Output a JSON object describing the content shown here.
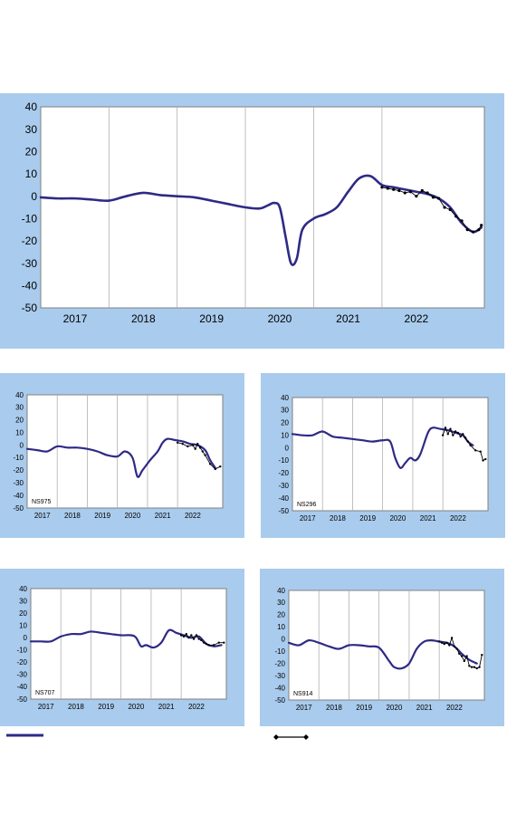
{
  "colors": {
    "panel_bg": "#a9cbed",
    "plot_bg": "#ffffff",
    "trend_line": "#2e2a85",
    "data_line": "#000000",
    "grid": "#b0b0b0"
  },
  "chart_data": [
    {
      "id": "main",
      "type": "line",
      "label": "",
      "x_axis": {
        "type": "date",
        "range": [
          "2016-07-01",
          "2022-12-31"
        ],
        "tick_labels": [
          "2017",
          "2018",
          "2019",
          "2020",
          "2021",
          "2022"
        ],
        "tick_positions": [
          "2017-01-01",
          "2018-01-01",
          "2019-01-01",
          "2020-01-01",
          "2021-01-01",
          "2022-01-01"
        ],
        "grid_lines": [
          "2017-07-01",
          "2018-07-01",
          "2019-07-01",
          "2020-07-01",
          "2021-07-01"
        ]
      },
      "y_axis": {
        "range": [
          -50,
          40
        ],
        "step": 10,
        "tick_labels": [
          "40",
          "30",
          "20",
          "10",
          "0",
          "-10",
          "-20",
          "-30",
          "-40",
          "-50"
        ]
      },
      "series": [
        {
          "name": "",
          "style": "smooth",
          "x": [
            "2016-07-01",
            "2016-10-01",
            "2017-01-01",
            "2017-04-01",
            "2017-07-01",
            "2017-10-01",
            "2018-01-01",
            "2018-04-01",
            "2018-07-01",
            "2018-10-01",
            "2019-01-01",
            "2019-04-01",
            "2019-07-01",
            "2019-09-15",
            "2019-11-01",
            "2019-12-01",
            "2020-01-01",
            "2020-02-01",
            "2020-03-01",
            "2020-04-01",
            "2020-05-01",
            "2020-07-01",
            "2020-09-01",
            "2020-11-01",
            "2021-01-01",
            "2021-03-01",
            "2021-05-01",
            "2021-07-01",
            "2021-09-01",
            "2021-11-01",
            "2022-01-01",
            "2022-03-01",
            "2022-05-01",
            "2022-07-01",
            "2022-09-01",
            "2022-11-01",
            "2022-12-15"
          ],
          "y": [
            -0.5,
            -1,
            -1,
            -1.5,
            -2,
            0,
            1.5,
            0.5,
            0,
            -0.5,
            -2,
            -3.5,
            -5,
            -5.5,
            -4,
            -3,
            -5,
            -18,
            -30,
            -28,
            -15,
            -10,
            -8,
            -5,
            2,
            8,
            9,
            5,
            4,
            3,
            2,
            1,
            -1,
            -5,
            -12,
            -16,
            -14
          ]
        },
        {
          "name": "",
          "style": "markers",
          "x": [
            "2021-07-01",
            "2021-08-01",
            "2021-09-01",
            "2021-10-01",
            "2021-11-01",
            "2021-12-01",
            "2022-01-01",
            "2022-02-01",
            "2022-03-01",
            "2022-04-01",
            "2022-05-01",
            "2022-06-01",
            "2022-07-01",
            "2022-08-01",
            "2022-09-01",
            "2022-10-01",
            "2022-11-01",
            "2022-12-01",
            "2022-12-15"
          ],
          "y": [
            4,
            3.5,
            3,
            2.5,
            1.5,
            2,
            0,
            2.5,
            1.5,
            -0.5,
            -1,
            -5,
            -6,
            -9,
            -11,
            -15,
            -16,
            -15,
            -13
          ]
        }
      ]
    },
    {
      "id": "ns975",
      "type": "line",
      "label": "NS975",
      "x_axis": {
        "type": "date",
        "range": [
          "2016-07-01",
          "2022-12-31"
        ],
        "tick_labels": [
          "2017",
          "2018",
          "2019",
          "2020",
          "2021",
          "2022"
        ],
        "tick_positions": [
          "2017-01-01",
          "2018-01-01",
          "2019-01-01",
          "2020-01-01",
          "2021-01-01",
          "2022-01-01"
        ],
        "grid_lines": [
          "2017-07-01",
          "2018-07-01",
          "2019-07-01",
          "2020-07-01",
          "2021-07-01"
        ]
      },
      "y_axis": {
        "range": [
          -50,
          40
        ],
        "step": 10,
        "tick_labels": [
          "40",
          "30",
          "20",
          "10",
          "0",
          "-10",
          "-20",
          "-30",
          "-40",
          "-50"
        ]
      },
      "series": [
        {
          "name": "",
          "style": "smooth",
          "x": [
            "2016-07-01",
            "2016-11-01",
            "2017-03-01",
            "2017-07-01",
            "2017-11-01",
            "2018-03-01",
            "2018-07-01",
            "2018-11-01",
            "2019-03-01",
            "2019-07-01",
            "2019-10-01",
            "2020-01-01",
            "2020-03-01",
            "2020-05-01",
            "2020-08-01",
            "2020-11-01",
            "2021-01-01",
            "2021-03-01",
            "2021-06-01",
            "2021-09-01",
            "2021-12-01",
            "2022-03-01",
            "2022-06-01",
            "2022-08-01",
            "2022-10-01"
          ],
          "y": [
            -3,
            -4,
            -5,
            -1,
            -2,
            -2,
            -3,
            -5,
            -8,
            -9,
            -5,
            -10,
            -25,
            -20,
            -12,
            -5,
            2,
            5,
            4,
            3,
            1,
            0,
            -4,
            -12,
            -18
          ]
        },
        {
          "name": "",
          "style": "markers",
          "x": [
            "2021-07-01",
            "2021-09-01",
            "2021-11-01",
            "2022-01-01",
            "2022-02-01",
            "2022-03-01",
            "2022-04-01",
            "2022-05-01",
            "2022-06-01",
            "2022-08-01",
            "2022-10-01",
            "2022-12-01"
          ],
          "y": [
            2,
            1,
            -1,
            0,
            -3,
            1,
            -2,
            -5,
            -8,
            -15,
            -19,
            -17
          ]
        }
      ]
    },
    {
      "id": "ns296",
      "type": "line",
      "label": "NS296",
      "x_axis": {
        "type": "date",
        "range": [
          "2016-07-01",
          "2022-12-31"
        ],
        "tick_labels": [
          "2017",
          "2018",
          "2019",
          "2020",
          "2021",
          "2022"
        ],
        "tick_positions": [
          "2017-01-01",
          "2018-01-01",
          "2019-01-01",
          "2020-01-01",
          "2021-01-01",
          "2022-01-01"
        ],
        "grid_lines": [
          "2017-07-01",
          "2018-07-01",
          "2019-07-01",
          "2020-07-01",
          "2021-07-01"
        ]
      },
      "y_axis": {
        "range": [
          -50,
          40
        ],
        "step": 10,
        "tick_labels": [
          "40",
          "30",
          "20",
          "10",
          "0",
          "-10",
          "-20",
          "-30",
          "-40",
          "-50"
        ]
      },
      "series": [
        {
          "name": "",
          "style": "smooth",
          "x": [
            "2016-07-01",
            "2016-11-01",
            "2017-03-01",
            "2017-07-01",
            "2017-11-01",
            "2018-03-01",
            "2018-07-01",
            "2018-11-01",
            "2019-03-01",
            "2019-07-01",
            "2019-10-01",
            "2019-12-01",
            "2020-02-01",
            "2020-04-01",
            "2020-06-01",
            "2020-08-01",
            "2020-10-01",
            "2021-01-01",
            "2021-03-01",
            "2021-06-01",
            "2021-09-01",
            "2021-12-01",
            "2022-03-01",
            "2022-05-01",
            "2022-07-01"
          ],
          "y": [
            11,
            10,
            10,
            13,
            9,
            8,
            7,
            6,
            5,
            6,
            5,
            -8,
            -16,
            -12,
            -8,
            -10,
            -5,
            12,
            16,
            15,
            14,
            12,
            10,
            5,
            2
          ]
        },
        {
          "name": "",
          "style": "markers",
          "x": [
            "2021-07-01",
            "2021-08-01",
            "2021-09-01",
            "2021-10-01",
            "2021-11-01",
            "2021-12-01",
            "2022-01-01",
            "2022-02-01",
            "2022-03-01",
            "2022-04-01",
            "2022-05-01",
            "2022-06-01",
            "2022-08-01",
            "2022-10-01",
            "2022-11-01",
            "2022-12-01"
          ],
          "y": [
            10,
            16,
            11,
            15,
            10,
            13,
            12,
            9,
            11,
            8,
            5,
            2,
            -2,
            -3,
            -10,
            -9
          ]
        }
      ]
    },
    {
      "id": "ns707",
      "type": "line",
      "label": "NS707",
      "x_axis": {
        "type": "date",
        "range": [
          "2016-07-01",
          "2022-12-31"
        ],
        "tick_labels": [
          "2017",
          "2018",
          "2019",
          "2020",
          "2021",
          "2022"
        ],
        "tick_positions": [
          "2017-01-01",
          "2018-01-01",
          "2019-01-01",
          "2020-01-01",
          "2021-01-01",
          "2022-01-01"
        ],
        "grid_lines": [
          "2017-07-01",
          "2018-07-01",
          "2019-07-01",
          "2020-07-01",
          "2021-07-01"
        ]
      },
      "y_axis": {
        "range": [
          -50,
          40
        ],
        "step": 10,
        "tick_labels": [
          "40",
          "30",
          "20",
          "10",
          "0",
          "-10",
          "-20",
          "-30",
          "-40",
          "-50"
        ]
      },
      "series": [
        {
          "name": "",
          "style": "smooth",
          "x": [
            "2016-07-01",
            "2016-11-01",
            "2017-03-01",
            "2017-07-01",
            "2017-11-01",
            "2018-03-01",
            "2018-07-01",
            "2018-11-01",
            "2019-03-01",
            "2019-07-01",
            "2019-11-01",
            "2020-01-01",
            "2020-03-01",
            "2020-05-01",
            "2020-08-01",
            "2020-11-01",
            "2021-02-01",
            "2021-05-01",
            "2021-08-01",
            "2021-11-01",
            "2022-02-01",
            "2022-05-01",
            "2022-08-01",
            "2022-11-01"
          ],
          "y": [
            -3,
            -3,
            -3,
            1,
            3,
            3,
            5,
            4,
            3,
            2,
            2,
            0,
            -7,
            -6,
            -8,
            -4,
            6,
            4,
            2,
            0,
            1,
            -5,
            -7,
            -6
          ]
        },
        {
          "name": "",
          "style": "markers",
          "x": [
            "2021-07-01",
            "2021-08-01",
            "2021-09-01",
            "2021-10-01",
            "2021-11-01",
            "2021-12-01",
            "2022-01-01",
            "2022-02-01",
            "2022-03-01",
            "2022-04-01",
            "2022-05-01",
            "2022-06-01",
            "2022-08-01",
            "2022-10-01",
            "2022-12-01"
          ],
          "y": [
            2,
            1,
            3,
            0,
            2,
            -1,
            2,
            -1,
            -2,
            -4,
            -5,
            -6,
            -6,
            -4,
            -4
          ]
        }
      ]
    },
    {
      "id": "ns914",
      "type": "line",
      "label": "NS914",
      "x_axis": {
        "type": "date",
        "range": [
          "2016-07-01",
          "2022-12-31"
        ],
        "tick_labels": [
          "2017",
          "2018",
          "2019",
          "2020",
          "2021",
          "2022"
        ],
        "tick_positions": [
          "2017-01-01",
          "2018-01-01",
          "2019-01-01",
          "2020-01-01",
          "2021-01-01",
          "2022-01-01"
        ],
        "grid_lines": [
          "2017-07-01",
          "2018-07-01",
          "2019-07-01",
          "2020-07-01",
          "2021-07-01"
        ]
      },
      "y_axis": {
        "range": [
          -50,
          40
        ],
        "step": 10,
        "tick_labels": [
          "40",
          "30",
          "20",
          "10",
          "0",
          "-10",
          "-20",
          "-30",
          "-40",
          "-50"
        ]
      },
      "series": [
        {
          "name": "",
          "style": "smooth",
          "x": [
            "2016-07-01",
            "2016-11-01",
            "2017-03-01",
            "2017-07-01",
            "2017-11-01",
            "2018-03-01",
            "2018-07-01",
            "2018-11-01",
            "2019-03-01",
            "2019-07-01",
            "2019-11-01",
            "2020-01-01",
            "2020-04-01",
            "2020-07-01",
            "2020-10-01",
            "2021-01-01",
            "2021-04-01",
            "2021-07-01",
            "2021-10-01",
            "2022-01-01",
            "2022-04-01",
            "2022-07-01",
            "2022-10-01"
          ],
          "y": [
            -3,
            -5,
            -1,
            -3,
            -6,
            -8,
            -5,
            -5,
            -6,
            -7,
            -18,
            -23,
            -24,
            -20,
            -8,
            -2,
            -1,
            -2,
            -3,
            -6,
            -12,
            -17,
            -20
          ]
        },
        {
          "name": "",
          "style": "markers",
          "x": [
            "2021-07-01",
            "2021-08-01",
            "2021-09-01",
            "2021-10-01",
            "2021-11-01",
            "2021-12-01",
            "2022-01-01",
            "2022-02-01",
            "2022-03-01",
            "2022-04-01",
            "2022-05-01",
            "2022-06-01",
            "2022-07-01",
            "2022-08-01",
            "2022-09-01",
            "2022-10-01",
            "2022-11-01",
            "2022-12-01"
          ],
          "y": [
            -2,
            -3,
            -4,
            -3,
            -5,
            1,
            -6,
            -8,
            -12,
            -14,
            -18,
            -14,
            -22,
            -23,
            -23,
            -24,
            -23,
            -13
          ]
        }
      ]
    }
  ]
}
